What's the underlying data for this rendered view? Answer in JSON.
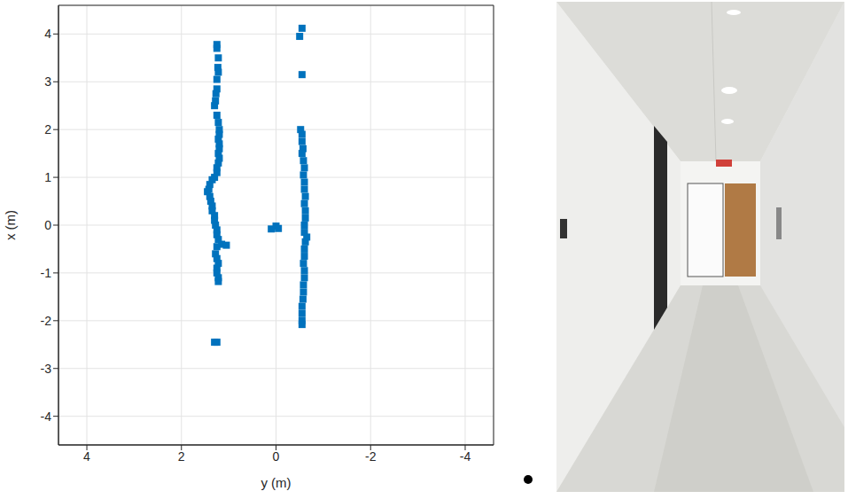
{
  "chart_data": {
    "type": "scatter",
    "x_label": "y (m)",
    "y_label": "x (m)",
    "color": "#0072bd",
    "marker": "square",
    "grid": true,
    "xlim": [
      4.6,
      -4.6
    ],
    "xticks": [
      4,
      2,
      0,
      -2,
      -4
    ],
    "ylim": [
      -4.6,
      4.6
    ],
    "yticks": [
      -4,
      -3,
      -2,
      -1,
      0,
      1,
      2,
      3,
      4
    ],
    "x": [
      1.25,
      1.25,
      1.22,
      1.23,
      1.22,
      1.25,
      1.25,
      1.27,
      1.28,
      1.3,
      1.25,
      1.22,
      1.2,
      1.2,
      1.22,
      1.2,
      1.2,
      1.22,
      1.2,
      1.22,
      1.25,
      1.25,
      1.3,
      1.35,
      1.4,
      1.42,
      1.45,
      1.4,
      1.38,
      1.35,
      1.35,
      1.3,
      1.3,
      1.28,
      1.25,
      1.25,
      1.22,
      1.15,
      1.05,
      1.25,
      1.28,
      1.25,
      1.22,
      1.25,
      1.25,
      1.22,
      1.22,
      1.25,
      1.3,
      0.1,
      0.0,
      -0.05,
      -0.55,
      -0.5,
      -0.55,
      -0.52,
      -0.55,
      -0.55,
      -0.57,
      -0.55,
      -0.58,
      -0.6,
      -0.58,
      -0.6,
      -0.6,
      -0.62,
      -0.6,
      -0.62,
      -0.62,
      -0.6,
      -0.6,
      -0.65,
      -0.62,
      -0.6,
      -0.6,
      -0.58,
      -0.6,
      -0.6,
      -0.58,
      -0.58,
      -0.57,
      -0.55,
      -0.55,
      -0.55,
      -0.55
    ],
    "values": [
      3.78,
      3.7,
      3.5,
      3.3,
      3.2,
      3.05,
      2.85,
      2.75,
      2.6,
      2.5,
      2.3,
      2.15,
      2.0,
      1.9,
      1.8,
      1.7,
      1.6,
      1.5,
      1.4,
      1.3,
      1.2,
      1.1,
      1.0,
      0.95,
      0.85,
      0.75,
      0.7,
      0.6,
      0.5,
      0.4,
      0.3,
      0.2,
      0.1,
      0.0,
      -0.1,
      -0.2,
      -0.3,
      -0.4,
      -0.42,
      -0.45,
      -0.6,
      -0.7,
      -0.8,
      -0.9,
      -1.0,
      -1.1,
      -1.18,
      -2.45,
      -2.45,
      -0.08,
      -0.02,
      -0.07,
      4.12,
      3.95,
      3.15,
      2.0,
      1.9,
      1.75,
      1.6,
      1.5,
      1.35,
      1.2,
      1.05,
      0.9,
      0.75,
      0.6,
      0.45,
      0.3,
      0.15,
      0.0,
      -0.15,
      -0.25,
      -0.35,
      -0.5,
      -0.65,
      -0.8,
      -0.95,
      -1.1,
      -1.25,
      -1.4,
      -1.55,
      -1.7,
      -1.85,
      -2.0,
      -2.08
    ]
  }
}
